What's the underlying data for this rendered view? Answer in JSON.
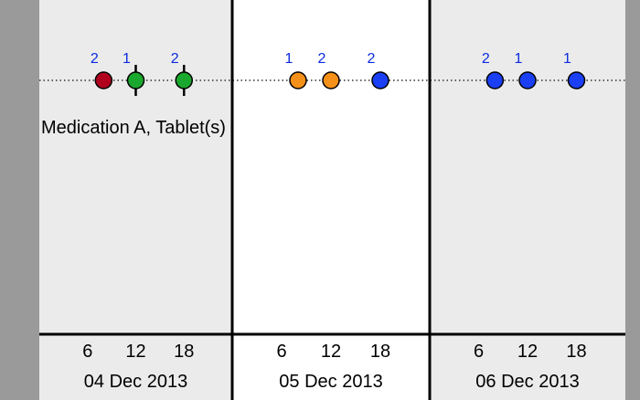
{
  "chart_data": {
    "type": "scatter",
    "medication_label": "Medication A, Tablet(s)",
    "days": [
      {
        "label": "04 Dec 2013",
        "background": "#ebebeb",
        "ticks": [
          "6",
          "12",
          "18"
        ]
      },
      {
        "label": "05 Dec 2013",
        "background": "#ffffff",
        "ticks": [
          "6",
          "12",
          "18"
        ]
      },
      {
        "label": "06 Dec 2013",
        "background": "#ebebeb",
        "ticks": [
          "6",
          "12",
          "18"
        ]
      }
    ],
    "doses": [
      {
        "day": 0,
        "hour": 8,
        "amount": "2",
        "color": "#b0001e",
        "marker": false
      },
      {
        "day": 0,
        "hour": 12,
        "amount": "1",
        "color": "#1aa82f",
        "marker": true
      },
      {
        "day": 0,
        "hour": 18,
        "amount": "2",
        "color": "#1aa82f",
        "marker": true
      },
      {
        "day": 1,
        "hour": 8,
        "amount": "1",
        "color": "#f59018",
        "marker": false
      },
      {
        "day": 1,
        "hour": 12,
        "amount": "2",
        "color": "#f59018",
        "marker": false
      },
      {
        "day": 1,
        "hour": 18,
        "amount": "2",
        "color": "#1a3ff5",
        "marker": false
      },
      {
        "day": 2,
        "hour": 8,
        "amount": "2",
        "color": "#1a3ff5",
        "marker": false
      },
      {
        "day": 2,
        "hour": 12,
        "amount": "1",
        "color": "#1a3ff5",
        "marker": false
      },
      {
        "day": 2,
        "hour": 18,
        "amount": "1",
        "color": "#1a3ff5",
        "marker": false
      }
    ],
    "dose_label_color": "#0b2be0",
    "grid": false
  }
}
